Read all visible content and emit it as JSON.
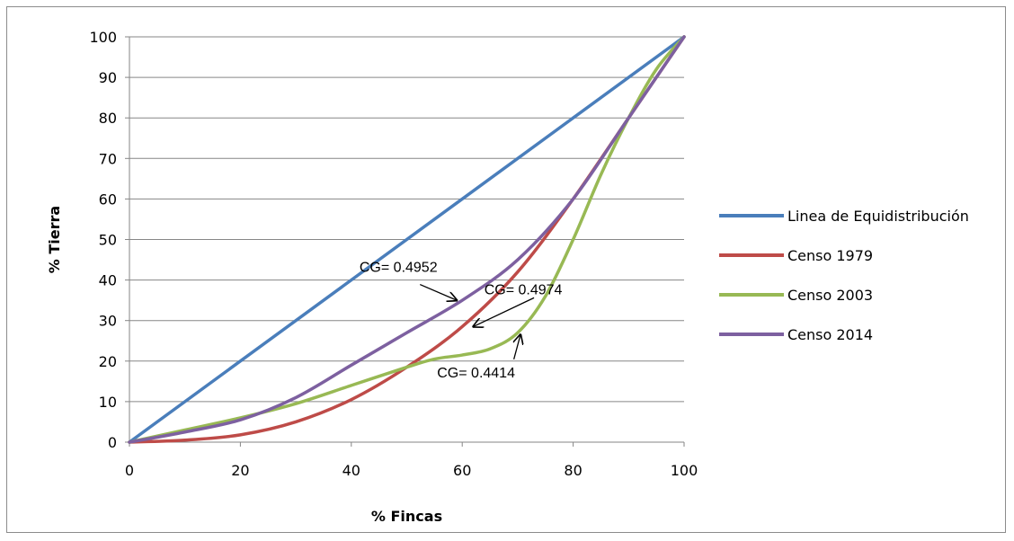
{
  "chart_data": {
    "type": "line",
    "xlabel": "% Fincas",
    "ylabel": "% Tierra",
    "xlim": [
      0,
      100
    ],
    "ylim": [
      0,
      100
    ],
    "x_ticks": [
      0,
      20,
      40,
      60,
      80,
      100
    ],
    "y_ticks": [
      0,
      10,
      20,
      30,
      40,
      50,
      60,
      70,
      80,
      90,
      100
    ],
    "grid": "horizontal",
    "legend_position": "right",
    "series": [
      {
        "name": "Linea de Equidistribución",
        "color": "#4a7ebb",
        "x": [
          0,
          100
        ],
        "y": [
          0,
          100
        ]
      },
      {
        "name": "Censo 1979",
        "color": "#be4b48",
        "x": [
          0,
          10,
          20,
          30,
          40,
          50,
          60,
          70,
          80,
          90,
          100
        ],
        "y": [
          0,
          0.5,
          1.8,
          5,
          10.5,
          18.5,
          28.5,
          42,
          60,
          80,
          100
        ]
      },
      {
        "name": "Censo 2003",
        "color": "#98b954",
        "x": [
          0,
          10,
          20,
          30,
          40,
          50,
          55,
          60,
          65,
          70,
          75,
          80,
          85,
          90,
          95,
          100
        ],
        "y": [
          0,
          3,
          6,
          9.5,
          14,
          18.5,
          20.5,
          21.5,
          23,
          27,
          36,
          50,
          66,
          80,
          92,
          100
        ]
      },
      {
        "name": "Censo 2014",
        "color": "#7d60a0",
        "x": [
          0,
          10,
          20,
          30,
          40,
          50,
          60,
          70,
          80,
          90,
          100
        ],
        "y": [
          0,
          2.5,
          5.5,
          11,
          19,
          27,
          35,
          45,
          60,
          80,
          100
        ]
      }
    ],
    "annotations": [
      {
        "text": "CG= 0.4952",
        "x": 48.5,
        "y": 42,
        "arrow_to": [
          59,
          35
        ]
      },
      {
        "text": "CG= 0.4974",
        "x": 71,
        "y": 36.5,
        "arrow_to": [
          62,
          28.5
        ]
      },
      {
        "text": "CG= 0.4414",
        "x": 62.5,
        "y": 16,
        "arrow_to": [
          70.5,
          26.5
        ]
      }
    ]
  }
}
